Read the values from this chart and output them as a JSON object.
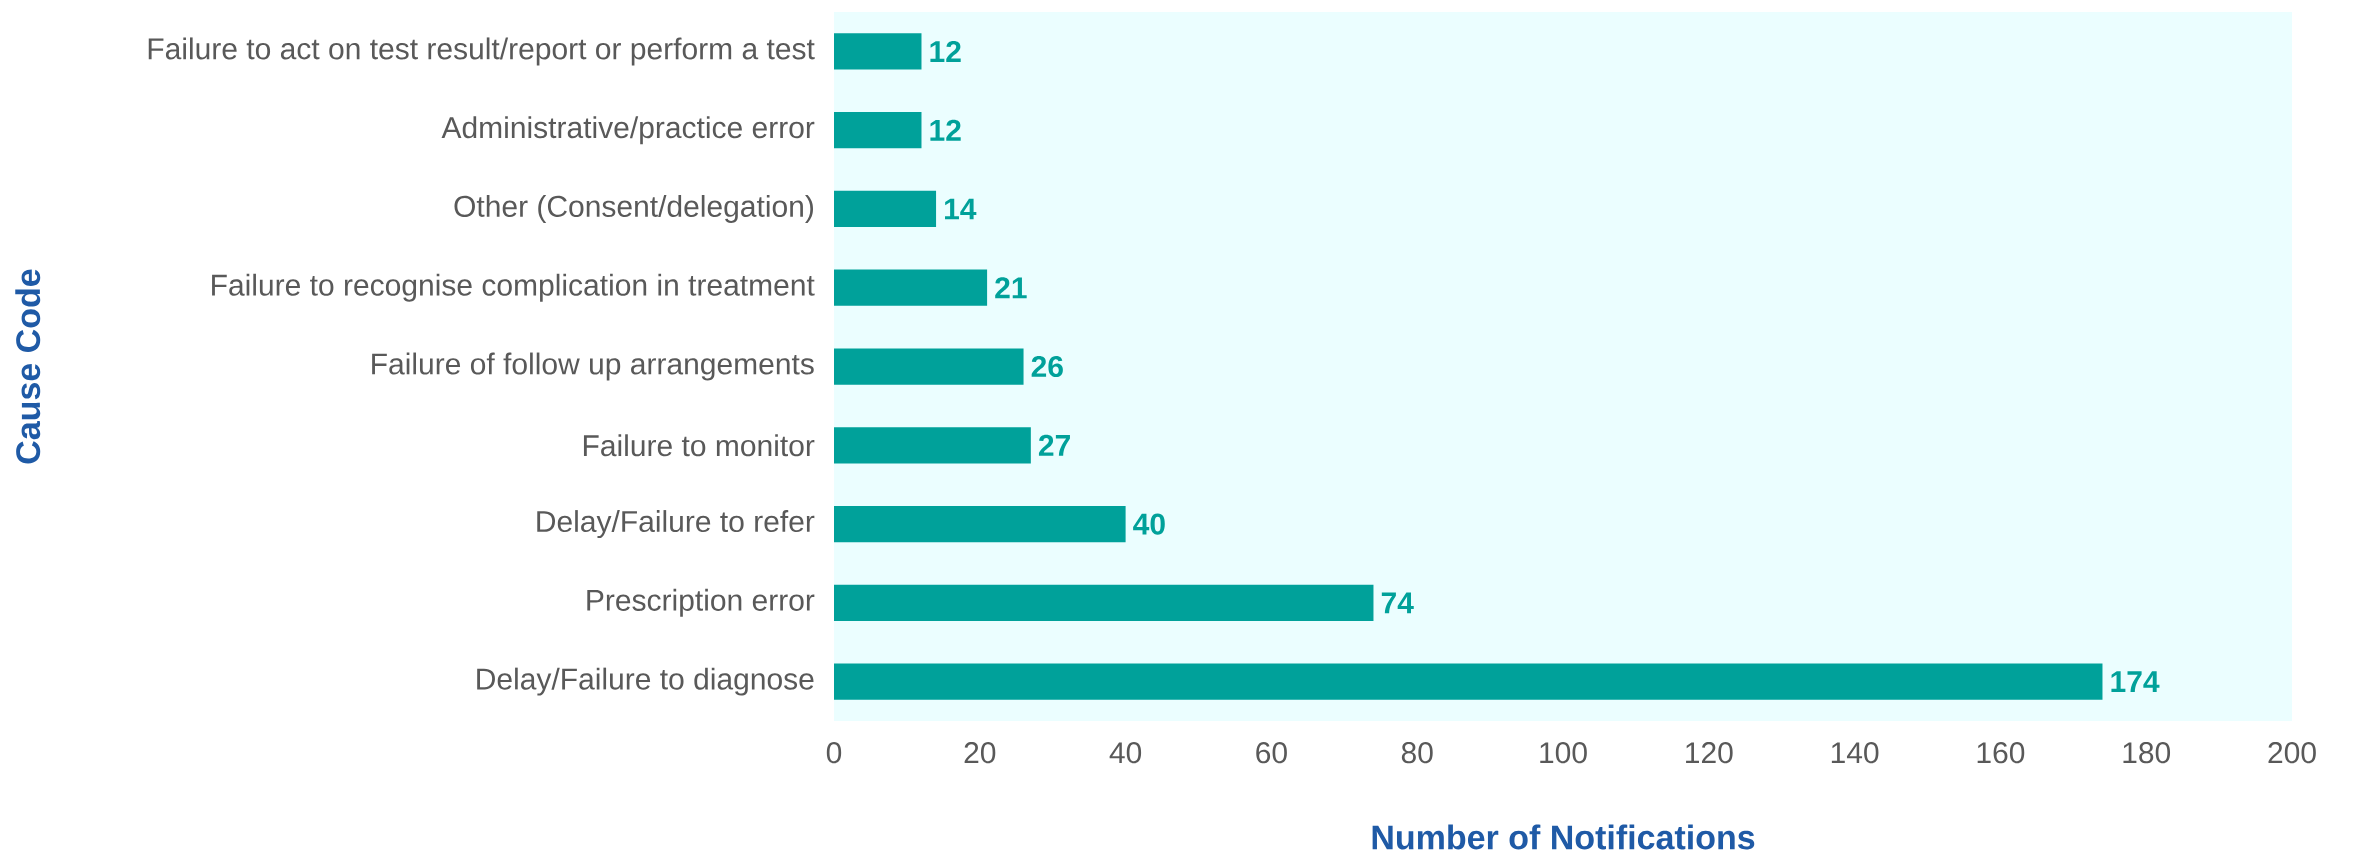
{
  "chart_data": {
    "type": "bar",
    "orientation": "horizontal",
    "xlabel": "Number of Notifications",
    "ylabel": "Cause Code",
    "categories": [
      "Failure to act on test result/report or perform a test",
      "Administrative/practice error",
      "Other (Consent/delegation)",
      "Failure to recognise complication in treatment",
      "Failure of follow up arrangements",
      "Failure to monitor",
      "Delay/Failure to refer",
      "Prescription error",
      "Delay/Failure to diagnose"
    ],
    "values": [
      12,
      12,
      14,
      21,
      26,
      27,
      40,
      74,
      174
    ],
    "color": "#00a19a",
    "xlim": [
      0,
      200
    ],
    "xticks": [
      0,
      20,
      40,
      60,
      80,
      100,
      120,
      140,
      160,
      180,
      200
    ],
    "data_labels": true
  }
}
